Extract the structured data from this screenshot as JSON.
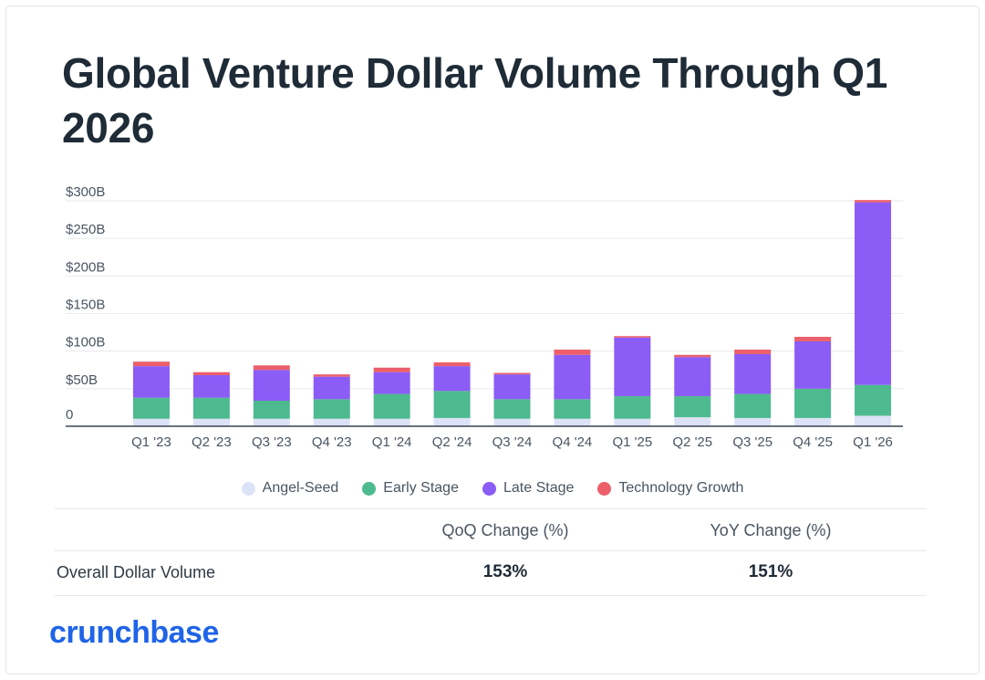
{
  "title": "Global Venture Dollar Volume Through Q1 2026",
  "chart_data": {
    "type": "bar",
    "stacked": true,
    "title": "Global Venture Dollar Volume Through Q1 2026",
    "xlabel": "",
    "ylabel": "",
    "ylim": [
      0,
      300
    ],
    "yticks": [
      0,
      50,
      100,
      150,
      200,
      250,
      300
    ],
    "ytick_labels": [
      "0",
      "$50B",
      "$100B",
      "$150B",
      "$200B",
      "$250B",
      "$300B"
    ],
    "grid": true,
    "legend_position": "bottom",
    "categories": [
      "Q1 '23",
      "Q2 '23",
      "Q3 '23",
      "Q4 '23",
      "Q1 '24",
      "Q2 '24",
      "Q3 '24",
      "Q4 '24",
      "Q1 '25",
      "Q2 '25",
      "Q3 '25",
      "Q4 '25",
      "Q1 '26"
    ],
    "series": [
      {
        "name": "Angel-Seed",
        "color": "#dde3f7",
        "values": [
          10,
          10,
          10,
          10,
          10,
          11,
          10,
          10,
          10,
          12,
          11,
          11,
          14
        ]
      },
      {
        "name": "Early Stage",
        "color": "#4dba8f",
        "values": [
          28,
          28,
          24,
          26,
          33,
          36,
          26,
          26,
          30,
          28,
          32,
          39,
          41
        ]
      },
      {
        "name": "Late Stage",
        "color": "#8b5cf6",
        "values": [
          42,
          30,
          41,
          30,
          29,
          33,
          33,
          59,
          78,
          52,
          53,
          63,
          243
        ]
      },
      {
        "name": "Technology Growth",
        "color": "#ec5f6a",
        "values": [
          6,
          4,
          6,
          3,
          6,
          5,
          2,
          7,
          2,
          3,
          6,
          6,
          3
        ]
      }
    ]
  },
  "table": {
    "headers": [
      "QoQ Change (%)",
      "YoY Change (%)"
    ],
    "row_label": "Overall Dollar Volume",
    "values": [
      "153%",
      "151%"
    ]
  },
  "brand": "crunchbase"
}
